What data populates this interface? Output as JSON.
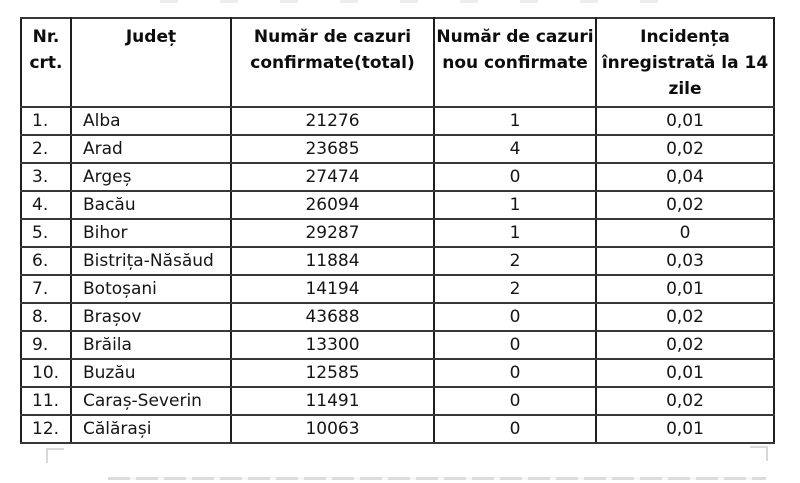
{
  "table": {
    "headers": [
      "Nr. crt.",
      "Județ",
      "Număr de cazuri confirmate(total)",
      "Număr de cazuri nou confirmate",
      "Incidența înregistrată la 14 zile"
    ],
    "rows": [
      [
        "1.",
        "Alba",
        "21276",
        "1",
        "0,01"
      ],
      [
        "2.",
        "Arad",
        "23685",
        "4",
        "0,02"
      ],
      [
        "3.",
        "Argeș",
        "27474",
        "0",
        "0,04"
      ],
      [
        "4.",
        "Bacău",
        "26094",
        "1",
        "0,02"
      ],
      [
        "5.",
        "Bihor",
        "29287",
        "1",
        "0"
      ],
      [
        "6.",
        "Bistrița-Năsăud",
        "11884",
        "2",
        "0,03"
      ],
      [
        "7.",
        "Botoșani",
        "14194",
        "2",
        "0,01"
      ],
      [
        "8.",
        "Brașov",
        "43688",
        "0",
        "0,02"
      ],
      [
        "9.",
        "Brăila",
        "13300",
        "0",
        "0,02"
      ],
      [
        "10.",
        "Buzău",
        "12585",
        "0",
        "0,01"
      ],
      [
        "11.",
        "Caraș-Severin",
        "11491",
        "0",
        "0,02"
      ],
      [
        "12.",
        "Călărași",
        "10063",
        "0",
        "0,01"
      ]
    ]
  },
  "colors": {
    "text": "#111111",
    "border": "#383838",
    "background": "#ffffff",
    "ghost_artifact": "#d6d6d6"
  }
}
